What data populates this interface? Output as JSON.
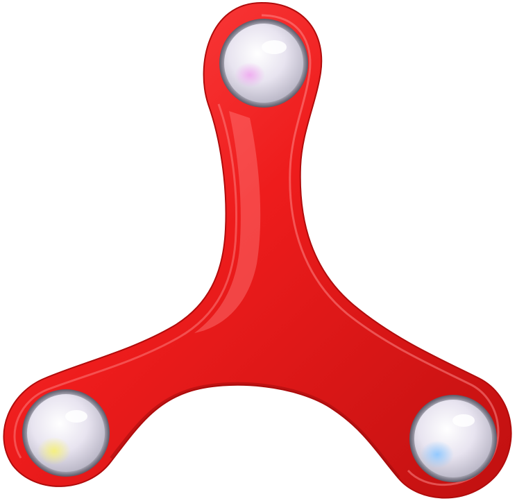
{
  "image": {
    "subject": "fidget-spinner",
    "colors": {
      "background": "#ffffff",
      "body": "#ee1c1c",
      "body_shadow": "#b50f0f",
      "body_highlight": "#ff7070",
      "bearing_metal": "#e6e2ee",
      "bearing_rim": "#9a9aa6",
      "glint_top": "#f0a8f0",
      "glint_left": "#f5f07a",
      "glint_right": "#8ec8ff"
    },
    "bearings": [
      {
        "position": "top",
        "glint_color": "#f0a8f0"
      },
      {
        "position": "bottom-left",
        "glint_color": "#f5f07a"
      },
      {
        "position": "bottom-right",
        "glint_color": "#8ec8ff"
      }
    ]
  }
}
